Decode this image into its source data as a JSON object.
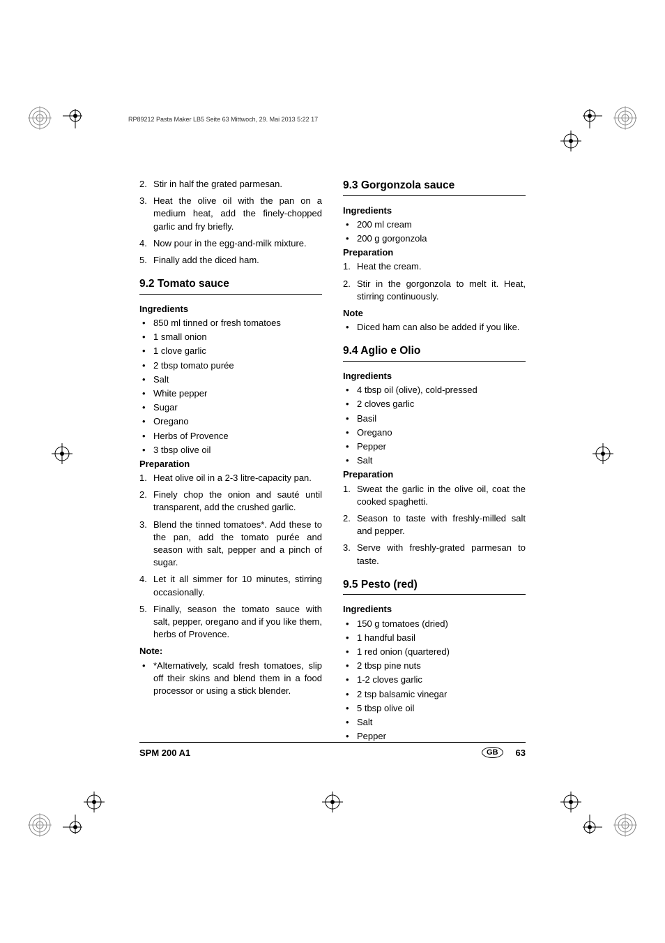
{
  "header_line": "RP89212 Pasta Maker LB5  Seite 63  Mittwoch, 29. Mai 2013  5:22 17",
  "col1": {
    "steps_top": [
      {
        "n": "2.",
        "t": "Stir in half the grated parmesan."
      },
      {
        "n": "3.",
        "t": "Heat the olive oil with the pan on a medium heat, add the finely-chopped garlic and fry briefly."
      },
      {
        "n": "4.",
        "t": "Now pour in the egg-and-milk mixture."
      },
      {
        "n": "5.",
        "t": "Finally add the diced ham."
      }
    ],
    "s92": {
      "title": "9.2 Tomato sauce",
      "ing_header": "Ingredients",
      "ingredients": [
        "850 ml tinned or fresh tomatoes",
        "1 small onion",
        "1 clove garlic",
        "2 tbsp tomato purée",
        "Salt",
        "White pepper",
        "Sugar",
        "Oregano",
        "Herbs of Provence",
        "3 tbsp olive oil"
      ],
      "prep_header": "Preparation",
      "prep": [
        {
          "n": "1.",
          "t": "Heat olive oil in a 2-3 litre-capacity pan."
        },
        {
          "n": "2.",
          "t": "Finely chop the onion and sauté until transparent, add the crushed garlic."
        },
        {
          "n": "3.",
          "t": "Blend the tinned tomatoes*. Add these to the pan, add the tomato purée and season with salt, pepper and a pinch of sugar."
        },
        {
          "n": "4.",
          "t": "Let it all simmer for 10 minutes, stirring occasionally."
        },
        {
          "n": "5.",
          "t": "Finally, season the tomato sauce with salt, pepper, oregano and if you like them, herbs of Provence."
        }
      ],
      "note_header": "Note:",
      "note": "*Alternatively, scald fresh tomatoes, slip off their skins and blend them in a food processor or using a stick blender."
    }
  },
  "col2": {
    "s93": {
      "title": "9.3 Gorgonzola sauce",
      "ing_header": "Ingredients",
      "ingredients": [
        "200 ml cream",
        "200 g gorgonzola"
      ],
      "prep_header": "Preparation",
      "prep": [
        {
          "n": "1.",
          "t": "Heat the cream."
        },
        {
          "n": "2.",
          "t": "Stir in the gorgonzola to melt it. Heat, stirring continuously."
        }
      ],
      "note_header": "Note",
      "note": "Diced ham can also be added if you like."
    },
    "s94": {
      "title": "9.4 Aglio e Olio",
      "ing_header": "Ingredients",
      "ingredients": [
        "4 tbsp oil (olive), cold-pressed",
        "2 cloves garlic",
        "Basil",
        "Oregano",
        "Pepper",
        "Salt"
      ],
      "prep_header": "Preparation",
      "prep": [
        {
          "n": "1.",
          "t": "Sweat the garlic in the olive oil, coat the cooked spaghetti."
        },
        {
          "n": "2.",
          "t": "Season to taste with freshly-milled salt and pepper."
        },
        {
          "n": "3.",
          "t": "Serve with freshly-grated parmesan to taste."
        }
      ]
    },
    "s95": {
      "title": "9.5 Pesto (red)",
      "ing_header": "Ingredients",
      "ingredients": [
        "150 g tomatoes (dried)",
        "1 handful basil",
        "1 red onion (quartered)",
        "2 tbsp pine nuts",
        "1-2 cloves garlic",
        "2 tsp balsamic vinegar",
        "5 tbsp olive oil",
        "Salt",
        "Pepper"
      ]
    }
  },
  "footer": {
    "model": "SPM 200 A1",
    "region": "GB",
    "page": "63"
  },
  "colors": {
    "text": "#000000",
    "bg": "#ffffff"
  }
}
